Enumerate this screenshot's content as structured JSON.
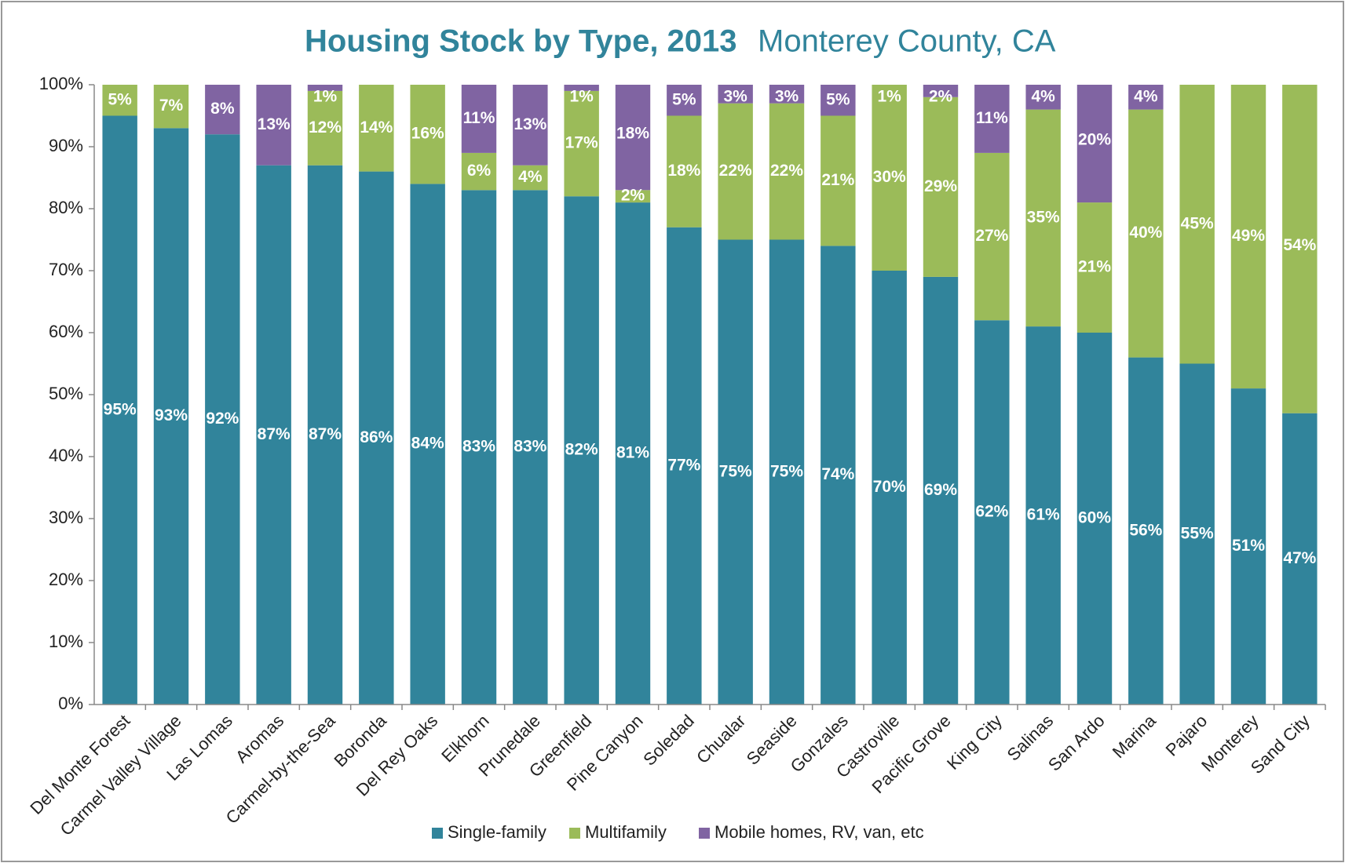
{
  "chart_data": {
    "type": "stacked_bar",
    "title": "Housing Stock by Type, 2013",
    "subtitle": "Monterey County, CA",
    "categories": [
      "Del Monte Forest",
      "Carmel Valley Village",
      "Las Lomas",
      "Aromas",
      "Carmel-by-the-Sea",
      "Boronda",
      "Del Rey Oaks",
      "Elkhorn",
      "Prunedale",
      "Greenfield",
      "Pine Canyon",
      "Soledad",
      "Chualar",
      "Seaside",
      "Gonzales",
      "Castroville",
      "Pacific Grove",
      "King City",
      "Salinas",
      "San Ardo",
      "Marina",
      "Pajaro",
      "Monterey",
      "Sand City"
    ],
    "series": [
      {
        "name": "Single-family",
        "color": "#31849b",
        "values": [
          95,
          93,
          92,
          87,
          87,
          86,
          84,
          83,
          83,
          82,
          81,
          77,
          75,
          75,
          74,
          70,
          69,
          62,
          61,
          60,
          56,
          55,
          51,
          47
        ],
        "value_labels": [
          "95%",
          "93%",
          "92%",
          "87%",
          "87%",
          "86%",
          "84%",
          "83%",
          "83%",
          "82%",
          "81%",
          "77%",
          "75%",
          "75%",
          "74%",
          "70%",
          "69%",
          "62%",
          "61%",
          "60%",
          "56%",
          "55%",
          "51%",
          "47%"
        ]
      },
      {
        "name": "Multifamily",
        "color": "#9bbb59",
        "values": [
          5,
          7,
          0,
          0,
          12,
          14,
          16,
          6,
          4,
          17,
          2,
          18,
          22,
          22,
          21,
          30,
          29,
          27,
          35,
          21,
          40,
          45,
          49,
          54
        ],
        "value_labels": [
          "5%",
          "7%",
          null,
          null,
          "12%",
          "14%",
          "16%",
          "6%",
          "4%",
          "17%",
          "2%",
          "18%",
          "22%",
          "22%",
          "21%",
          "30%",
          "29%",
          "27%",
          "35%",
          "21%",
          "40%",
          "45%",
          "49%",
          "54%"
        ]
      },
      {
        "name": "Mobile homes, RV, van, etc",
        "color": "#8064a2",
        "values": [
          0,
          0,
          8,
          13,
          1,
          0,
          0,
          11,
          13,
          1,
          18,
          5,
          3,
          3,
          5,
          1,
          2,
          11,
          4,
          20,
          4,
          0,
          0,
          0
        ],
        "value_labels": [
          null,
          null,
          "8%",
          "13%",
          "1%",
          null,
          null,
          "11%",
          "13%",
          "1%",
          "18%",
          "5%",
          "3%",
          "3%",
          "5%",
          "1%",
          "2%",
          "11%",
          "4%",
          "20%",
          "4%",
          null,
          null,
          null
        ]
      }
    ],
    "ylim": [
      0,
      100
    ],
    "yticks": [
      {
        "value": 0,
        "label": "0%"
      },
      {
        "value": 10,
        "label": "10%"
      },
      {
        "value": 20,
        "label": "20%"
      },
      {
        "value": 30,
        "label": "30%"
      },
      {
        "value": 40,
        "label": "40%"
      },
      {
        "value": 50,
        "label": "50%"
      },
      {
        "value": 60,
        "label": "60%"
      },
      {
        "value": 70,
        "label": "70%"
      },
      {
        "value": 80,
        "label": "80%"
      },
      {
        "value": 90,
        "label": "90%"
      },
      {
        "value": 100,
        "label": "100%"
      }
    ],
    "grid": false,
    "legend": "bottom"
  }
}
